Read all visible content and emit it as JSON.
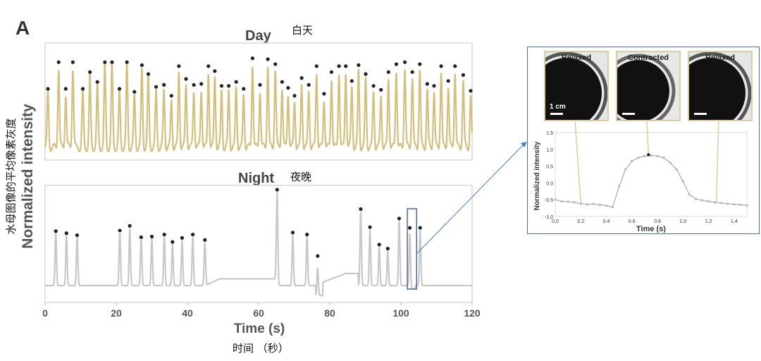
{
  "figure": {
    "panel_label": "A",
    "ylabel": "Normalized intensity",
    "ylabel_cn": "水母图像的平均像素灰度",
    "xlabel": "Time (s)",
    "xlabel_cn": "时间 （秒）",
    "day_title": "Day",
    "day_title_cn": "白天",
    "night_title": "Night",
    "night_title_cn": "夜晚"
  },
  "inset": {
    "photos": [
      {
        "label": "Relaxed",
        "scale_label": "1 cm"
      },
      {
        "label": "Contracted"
      },
      {
        "label": "Relaxed"
      }
    ]
  },
  "chart_data": [
    {
      "type": "line",
      "name": "day-trace",
      "title": "Day",
      "color": "#d2c07f",
      "xlim": [
        0,
        120
      ],
      "peak_times": [
        0.8,
        3.8,
        5.8,
        7.8,
        10.6,
        12.6,
        14.7,
        16.8,
        18.8,
        20.9,
        23.0,
        25.1,
        27.2,
        29.0,
        31.2,
        33.4,
        35.5,
        37.6,
        39.6,
        41.8,
        43.9,
        45.9,
        47.7,
        49.6,
        51.6,
        53.7,
        55.8,
        58.3,
        60.4,
        62.6,
        64.7,
        66.6,
        68.3,
        70.1,
        72.1,
        74.1,
        76.3,
        78.4,
        80.5,
        82.6,
        84.5,
        86.2,
        88.1,
        90.1,
        92.3,
        94.4,
        96.5,
        98.7,
        101.1,
        103.2,
        105.3,
        107.4,
        109.3,
        111.3,
        113.3,
        115.2,
        117.5,
        119.6
      ],
      "peak_values": [
        0.55,
        0.82,
        0.55,
        0.82,
        0.55,
        0.72,
        0.62,
        0.82,
        0.82,
        0.55,
        0.82,
        0.52,
        0.79,
        0.7,
        0.57,
        0.59,
        0.48,
        0.78,
        0.65,
        0.59,
        0.6,
        0.78,
        0.73,
        0.58,
        0.58,
        0.62,
        0.55,
        0.86,
        0.59,
        0.85,
        0.8,
        0.62,
        0.56,
        0.48,
        0.66,
        0.59,
        0.78,
        0.5,
        0.72,
        0.78,
        0.78,
        0.63,
        0.79,
        0.7,
        0.58,
        0.54,
        0.72,
        0.8,
        0.82,
        0.72,
        0.8,
        0.6,
        0.58,
        0.78,
        0.63,
        0.78,
        0.69,
        0.53
      ]
    },
    {
      "type": "line",
      "name": "night-trace",
      "title": "Night",
      "color": "#c8c8c8",
      "xlim": [
        0,
        120
      ],
      "x_ticks": [
        0,
        20,
        40,
        60,
        80,
        100,
        120
      ],
      "xlabel": "Time (s)",
      "peak_times": [
        3.0,
        6.0,
        9.0,
        21.0,
        23.8,
        27.0,
        30.0,
        33.5,
        35.8,
        38.5,
        41.5,
        44.9,
        65.2,
        69.6,
        73.6,
        76.6,
        88.7,
        91.3,
        93.9,
        96.3,
        99.5,
        102.5,
        105.4
      ],
      "peak_values": [
        0.78,
        0.75,
        0.72,
        0.79,
        0.86,
        0.69,
        0.7,
        0.73,
        0.62,
        0.68,
        0.73,
        0.65,
        1.4,
        0.76,
        0.73,
        0.41,
        1.11,
        0.84,
        0.58,
        0.52,
        0.97,
        0.83,
        0.83
      ],
      "highlight_box_range": [
        101.8,
        104.4
      ]
    },
    {
      "type": "line",
      "name": "inset-single-pulse",
      "xlabel": "Time (s)",
      "ylabel": "Normalized intensity",
      "xlim": [
        0.0,
        1.5
      ],
      "ylim": [
        -1.0,
        1.5
      ],
      "x_ticks": [
        "0.0",
        "0.2",
        "0.4",
        "0.6",
        "0.8",
        "1.0",
        "1.2",
        "1.4"
      ],
      "y_ticks": [
        "1.5",
        "1.0",
        "0.5",
        "0.0",
        "-0.5",
        "-1.0"
      ],
      "x": [
        0.0,
        0.05,
        0.1,
        0.15,
        0.2,
        0.25,
        0.3,
        0.35,
        0.4,
        0.45,
        0.5,
        0.55,
        0.6,
        0.65,
        0.7,
        0.75,
        0.8,
        0.85,
        0.9,
        0.95,
        1.0,
        1.05,
        1.1,
        1.15,
        1.2,
        1.25,
        1.3,
        1.35,
        1.4,
        1.45,
        1.5
      ],
      "y": [
        -0.5,
        -0.55,
        -0.56,
        -0.58,
        -0.62,
        -0.64,
        -0.63,
        -0.65,
        -0.68,
        -0.72,
        -0.1,
        0.4,
        0.65,
        0.75,
        0.8,
        0.82,
        0.8,
        0.75,
        0.6,
        0.4,
        0.05,
        -0.35,
        -0.48,
        -0.52,
        -0.55,
        -0.58,
        -0.6,
        -0.62,
        -0.64,
        -0.65,
        -0.67
      ],
      "marker_times": [
        0.2,
        0.73,
        1.26
      ]
    }
  ]
}
